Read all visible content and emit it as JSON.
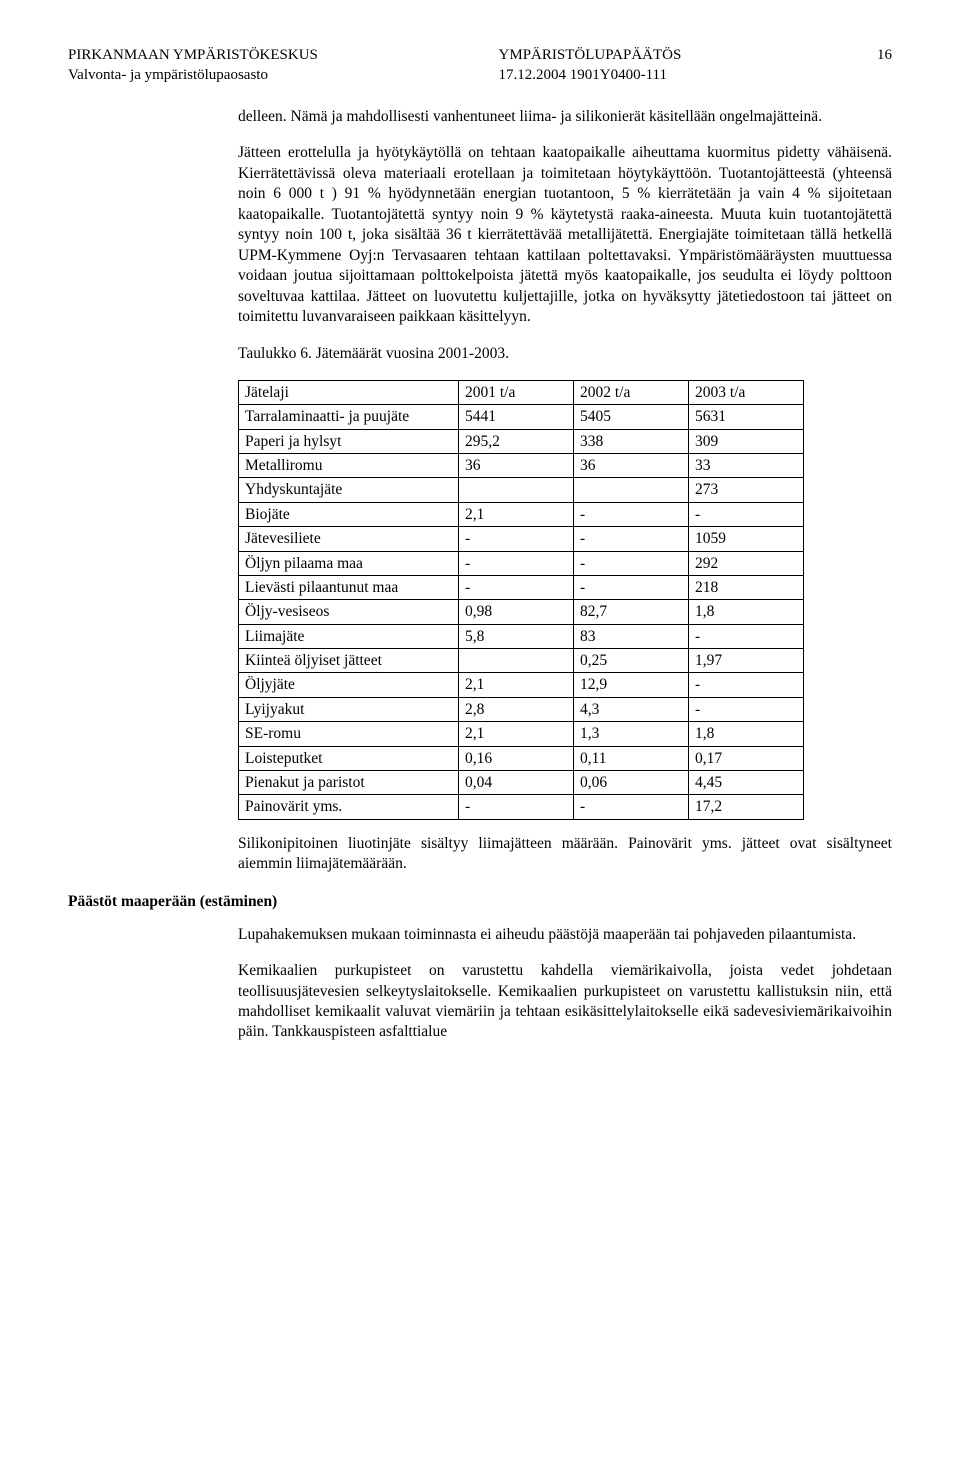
{
  "header": {
    "left_line1": "PIRKANMAAN YMPÄRISTÖKESKUS",
    "left_line2": "Valvonta- ja ympäristölupaosasto",
    "center_line1": "YMPÄRISTÖLUPAPÄÄTÖS",
    "center_line2": "17.12.2004 1901Y0400-111",
    "page_number": "16"
  },
  "paragraphs": {
    "p1": "delleen. Nämä ja mahdollisesti vanhentuneet liima- ja silikonierät käsitellään ongelmajätteinä.",
    "p2": "Jätteen erottelulla ja hyötykäytöllä on tehtaan kaatopaikalle aiheuttama kuormitus pidetty vähäisenä. Kierrätettävissä oleva materiaali erotellaan ja toimitetaan höytykäyttöön. Tuotantojätteestä (yhteensä noin 6 000 t ) 91 % hyödynnetään energian tuotantoon, 5 % kierrätetään ja vain 4 % sijoitetaan kaatopaikalle. Tuotantojätettä syntyy noin 9 % käytetystä raaka-aineesta. Muuta kuin tuotantojätettä syntyy noin 100 t, joka sisältää 36 t kierrätettävää metallijätettä. Energiajäte toimitetaan tällä hetkellä UPM-Kymmene Oyj:n Tervasaaren tehtaan kattilaan poltettavaksi. Ympäristömääräysten muuttuessa voidaan joutua sijoittamaan polttokelpoista jätettä myös kaatopaikalle, jos seudulta ei löydy polttoon soveltuvaa kattilaa. Jätteet on luovutettu kuljettajille, jotka on hyväksytty jätetiedostoon tai jätteet on toimitettu luvanvaraiseen paikkaan käsittelyyn.",
    "caption": "Taulukko 6. Jätemäärät vuosina 2001-2003.",
    "p3": "Silikonipitoinen liuotinjäte sisältyy liimajätteen määrään. Painovärit yms. jätteet ovat sisältyneet aiemmin liimajätemäärään.",
    "p4": "Lupahakemuksen mukaan toiminnasta ei aiheudu päästöjä maaperään tai pohjaveden pilaantumista.",
    "p5": "Kemikaalien purkupisteet on varustettu kahdella viemärikaivolla, joista vedet johdetaan teollisuusjätevesien selkeytyslaitokselle. Kemikaalien purkupisteet on varustettu kallistuksin niin, että mahdolliset kemikaalit valuvat viemäriin ja tehtaan esikäsittelylaitokselle eikä sadevesiviemärikaivoihin päin. Tankkauspisteen asfalttialue"
  },
  "section_heading": "Päästöt maaperään (estäminen)",
  "table": {
    "columns": [
      "Jätelaji",
      "2001 t/a",
      "2002 t/a",
      "2003 t/a"
    ],
    "rows": [
      [
        "Tarralaminaatti- ja puujäte",
        "5441",
        "5405",
        "5631"
      ],
      [
        "Paperi ja hylsyt",
        "295,2",
        "338",
        "309"
      ],
      [
        "Metalliromu",
        "36",
        "36",
        "33"
      ],
      [
        "Yhdyskuntajäte",
        "",
        "",
        "273"
      ],
      [
        "Biojäte",
        "2,1",
        "-",
        "-"
      ],
      [
        "Jätevesiliete",
        "-",
        "-",
        "1059"
      ],
      [
        "Öljyn pilaama maa",
        "-",
        "-",
        "292"
      ],
      [
        "Lievästi pilaantunut maa",
        "-",
        "-",
        "218"
      ],
      [
        "Öljy-vesiseos",
        "0,98",
        "82,7",
        "1,8"
      ],
      [
        "Liimajäte",
        "5,8",
        "83",
        "-"
      ],
      [
        "Kiinteä öljyiset jätteet",
        "",
        "0,25",
        "1,97"
      ],
      [
        "Öljyjäte",
        "2,1",
        "12,9",
        "-"
      ],
      [
        "Lyijyakut",
        "2,8",
        "4,3",
        "-"
      ],
      [
        "SE-romu",
        "2,1",
        "1,3",
        "1,8"
      ],
      [
        "Loisteputket",
        "0,16",
        "0,11",
        "0,17"
      ],
      [
        "Pienakut ja paristot",
        "0,04",
        "0,06",
        "4,45"
      ],
      [
        "Painovärit yms.",
        "-",
        "-",
        "17,2"
      ]
    ]
  }
}
